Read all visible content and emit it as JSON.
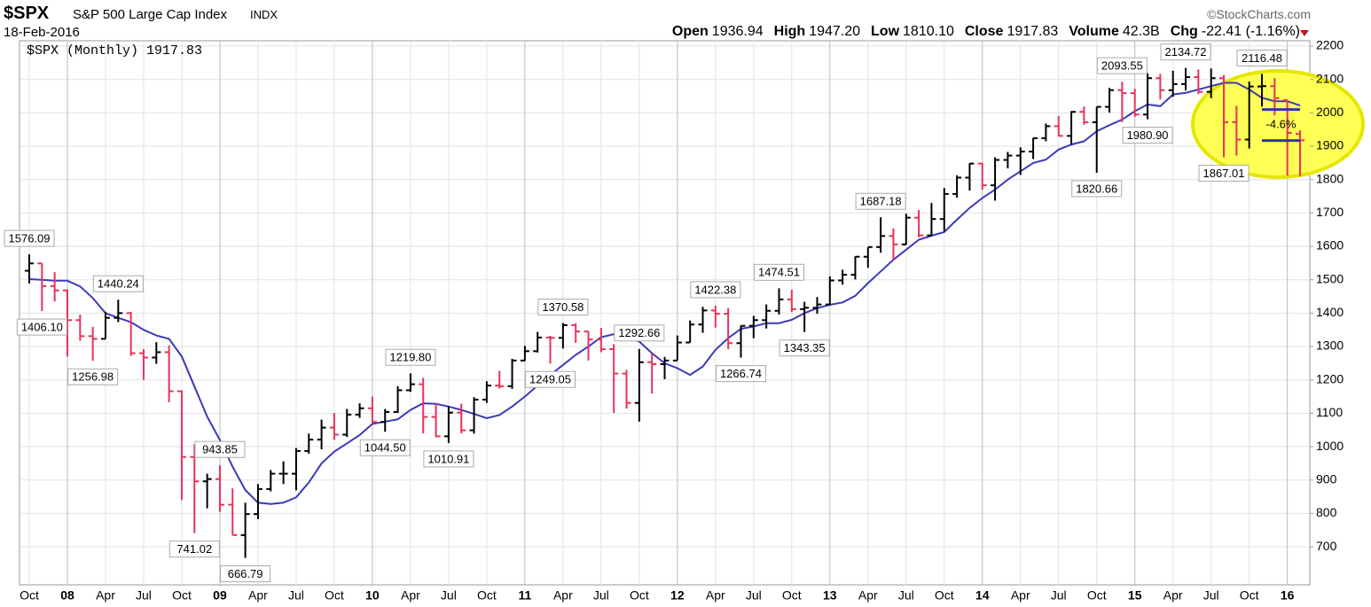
{
  "header": {
    "symbol": "$SPX",
    "name": "S&P 500 Large Cap Index",
    "exchange": "INDX",
    "date": "18-Feb-2016",
    "source": "©StockCharts.com",
    "quote": [
      {
        "label": "Open",
        "value": "1936.94"
      },
      {
        "label": "High",
        "value": "1947.20"
      },
      {
        "label": "Low",
        "value": "1810.10"
      },
      {
        "label": "Close",
        "value": "1917.83"
      },
      {
        "label": "Volume",
        "value": "42.3B"
      },
      {
        "label": "Chg",
        "value": "-22.41 (-1.16%)"
      }
    ]
  },
  "chart_data": {
    "type": "ohlc",
    "categories": [
      "Oct",
      null,
      null,
      "08",
      null,
      null,
      "Apr",
      null,
      null,
      "Jul",
      null,
      null,
      "Oct",
      null,
      null,
      "09",
      null,
      null,
      "Apr",
      null,
      null,
      "Jul",
      null,
      null,
      "Oct",
      null,
      null,
      "10",
      null,
      null,
      "Apr",
      null,
      null,
      "Jul",
      null,
      null,
      "Oct",
      null,
      null,
      "11",
      null,
      null,
      "Apr",
      null,
      null,
      "Jul",
      null,
      null,
      "Oct",
      null,
      null,
      "12",
      null,
      null,
      "Apr",
      null,
      null,
      "Jul",
      null,
      null,
      "Oct",
      null,
      null,
      "13",
      null,
      null,
      "Apr",
      null,
      null,
      "Jul",
      null,
      null,
      "Oct",
      null,
      null,
      "14",
      null,
      null,
      "Apr",
      null,
      null,
      "Jul",
      null,
      null,
      "Oct",
      null,
      null,
      "15",
      null,
      null,
      "Apr",
      null,
      null,
      "Jul",
      null,
      null,
      "Oct",
      null,
      null,
      "16",
      null
    ],
    "series": [
      {
        "name": "$SPX (Monthly) 1917.83",
        "up_color": "#000000",
        "down_color": "#e8325a",
        "open": [
          1527,
          1549,
          1481,
          1468,
          1379,
          1331,
          1323,
          1386,
          1400,
          1280,
          1267,
          1283,
          1166,
          969,
          896,
          903,
          826,
          735,
          798,
          873,
          919,
          919,
          987,
          1021,
          1057,
          1036,
          1096,
          1115,
          1074,
          1104,
          1169,
          1187,
          1089,
          1031,
          1102,
          1049,
          1141,
          1183,
          1181,
          1258,
          1286,
          1327,
          1326,
          1364,
          1345,
          1321,
          1292,
          1219,
          1131,
          1253,
          1247,
          1258,
          1312,
          1366,
          1408,
          1398,
          1310,
          1362,
          1379,
          1407,
          1441,
          1412,
          1416,
          1426,
          1498,
          1515,
          1569,
          1598,
          1631,
          1606,
          1686,
          1633,
          1682,
          1757,
          1806,
          1848,
          1783,
          1859,
          1872,
          1884,
          1924,
          1960,
          1931,
          2003,
          1972,
          2018,
          2068,
          2059,
          1995,
          2104,
          2068,
          2086,
          2107,
          2063,
          2104,
          1972,
          1920,
          2079,
          2080,
          2038,
          1936.94
        ],
        "high": [
          1576.09,
          1549,
          1523,
          1471,
          1396,
          1359,
          1404,
          1440.24,
          1404,
          1292,
          1313,
          1303,
          1168,
          1007,
          919,
          943.85,
          875,
          832,
          888,
          930,
          956,
          996,
          1039,
          1081,
          1101,
          1113,
          1130,
          1150,
          1113,
          1181,
          1219.8,
          1206,
          1131,
          1120,
          1129,
          1148,
          1196,
          1227,
          1263,
          1302,
          1344,
          1332,
          1370.58,
          1370,
          1346,
          1356,
          1307,
          1230,
          1292.66,
          1278,
          1269,
          1333,
          1378,
          1419,
          1422.38,
          1415,
          1363,
          1392,
          1426,
          1474.51,
          1470,
          1434,
          1448,
          1510,
          1530,
          1570,
          1597,
          1687.18,
          1654,
          1698,
          1709,
          1730,
          1775,
          1813,
          1849,
          1850,
          1867,
          1883,
          1897,
          1925,
          1968,
          1991,
          2005,
          2019,
          2018,
          2075,
          2093.55,
          2072,
          2119,
          2117,
          2126,
          2134.72,
          2130,
          2133,
          2113,
          2021,
          2094,
          2116.48,
          2104,
          2038,
          1947.2
        ],
        "low": [
          1489,
          1406.1,
          1435,
          1270,
          1317,
          1256.98,
          1323,
          1373,
          1272,
          1200,
          1248,
          1133,
          840,
          741.02,
          815,
          805,
          735,
          666.79,
          783,
          866,
          888,
          869,
          979,
          992,
          1020,
          1029,
          1086,
          1071,
          1044.5,
          1101,
          1164,
          1040,
          1028,
          1010.91,
          1040,
          1039,
          1131,
          1174,
          1173,
          1257,
          1282,
          1249.05,
          1294,
          1311,
          1258,
          1283,
          1101,
          1114,
          1075,
          1159,
          1202,
          1259,
          1312,
          1341,
          1357,
          1292,
          1266.74,
          1325,
          1354,
          1396,
          1403,
          1343.35,
          1398,
          1426,
          1485,
          1501,
          1536,
          1581,
          1560,
          1605,
          1627,
          1633,
          1646,
          1746,
          1767,
          1770,
          1737,
          1834,
          1814,
          1862,
          1915,
          1930,
          1905,
          1964,
          1820.66,
          2001,
          1972,
          1988,
          1980.9,
          2040,
          2048,
          2067,
          2056,
          2044,
          1867.01,
          1872,
          1893,
          2019,
          1993,
          1812,
          1810.1
        ],
        "close": [
          1549,
          1481,
          1468,
          1379,
          1331,
          1323,
          1386,
          1400,
          1280,
          1267,
          1283,
          1166,
          969,
          896,
          903,
          826,
          735,
          798,
          873,
          919,
          919,
          987,
          1021,
          1057,
          1036,
          1096,
          1115,
          1074,
          1104,
          1169,
          1187,
          1089,
          1031,
          1102,
          1049,
          1141,
          1183,
          1181,
          1258,
          1286,
          1327,
          1326,
          1364,
          1345,
          1321,
          1292,
          1219,
          1131,
          1253,
          1247,
          1258,
          1312,
          1366,
          1408,
          1398,
          1310,
          1362,
          1379,
          1407,
          1441,
          1412,
          1416,
          1426,
          1498,
          1515,
          1569,
          1598,
          1631,
          1606,
          1686,
          1633,
          1682,
          1757,
          1806,
          1848,
          1783,
          1859,
          1872,
          1884,
          1924,
          1960,
          1931,
          2003,
          1972,
          2018,
          2068,
          2059,
          1995,
          2104,
          2068,
          2086,
          2107,
          2063,
          2104,
          1972,
          1920,
          2079,
          2080,
          2044,
          1940,
          1917.83
        ],
        "high_labels": [
          "1576.09",
          null,
          null,
          null,
          null,
          null,
          null,
          "1440.24",
          null,
          null,
          null,
          null,
          null,
          null,
          null,
          "943.85",
          null,
          null,
          null,
          null,
          null,
          null,
          null,
          null,
          null,
          null,
          null,
          null,
          null,
          null,
          "1219.80",
          null,
          null,
          null,
          null,
          null,
          null,
          null,
          null,
          null,
          null,
          null,
          "1370.58",
          null,
          null,
          null,
          null,
          null,
          "1292.66",
          null,
          null,
          null,
          null,
          null,
          "1422.38",
          null,
          null,
          null,
          null,
          "1474.51",
          null,
          null,
          null,
          null,
          null,
          null,
          null,
          "1687.18",
          null,
          null,
          null,
          null,
          null,
          null,
          null,
          null,
          null,
          null,
          null,
          null,
          null,
          null,
          null,
          null,
          null,
          null,
          "2093.55",
          null,
          null,
          null,
          null,
          "2134.72",
          null,
          null,
          null,
          null,
          null,
          "2116.48",
          null,
          null,
          null
        ],
        "low_labels": [
          null,
          "1406.10",
          null,
          null,
          null,
          "1256.98",
          null,
          null,
          null,
          null,
          null,
          null,
          null,
          "741.02",
          null,
          null,
          null,
          "666.79",
          null,
          null,
          null,
          null,
          null,
          null,
          null,
          null,
          null,
          null,
          "1044.50",
          null,
          null,
          null,
          null,
          "1010.91",
          null,
          null,
          null,
          null,
          null,
          null,
          null,
          "1249.05",
          null,
          null,
          null,
          null,
          null,
          null,
          null,
          null,
          null,
          null,
          null,
          null,
          null,
          null,
          "1266.74",
          null,
          null,
          null,
          null,
          "1343.35",
          null,
          null,
          null,
          null,
          null,
          null,
          null,
          null,
          null,
          null,
          null,
          null,
          null,
          null,
          null,
          null,
          null,
          null,
          null,
          null,
          null,
          null,
          "1820.66",
          null,
          null,
          null,
          "1980.90",
          null,
          null,
          null,
          null,
          null,
          "1867.01",
          null,
          null,
          null,
          null,
          null,
          null
        ]
      },
      {
        "type": "line",
        "color": "#3a3ab8",
        "values": [
          1502,
          1500,
          1497,
          1497,
          1480,
          1445,
          1400,
          1386,
          1373,
          1350,
          1333,
          1323,
          1270,
          1180,
          1090,
          1020,
          940,
          870,
          832,
          828,
          832,
          848,
          893,
          950,
          985,
          1010,
          1035,
          1068,
          1075,
          1082,
          1110,
          1130,
          1128,
          1120,
          1110,
          1098,
          1085,
          1095,
          1120,
          1150,
          1183,
          1215,
          1245,
          1275,
          1300,
          1328,
          1337,
          1330,
          1315,
          1280,
          1250,
          1235,
          1215,
          1240,
          1290,
          1325,
          1353,
          1360,
          1370,
          1370,
          1380,
          1400,
          1415,
          1425,
          1432,
          1452,
          1490,
          1525,
          1560,
          1590,
          1620,
          1632,
          1643,
          1680,
          1715,
          1745,
          1770,
          1800,
          1825,
          1850,
          1860,
          1890,
          1905,
          1915,
          1945,
          1963,
          1980,
          2005,
          2025,
          2020,
          2055,
          2060,
          2070,
          2080,
          2090,
          2090,
          2070,
          2045,
          2035,
          2035,
          2022
        ]
      }
    ],
    "annotation": {
      "text": "-4.6%",
      "levels": [
        2010,
        1917
      ],
      "color": "#3333aa"
    },
    "ylim": [
      586,
      2216
    ],
    "yticks": [
      700,
      800,
      900,
      1000,
      1100,
      1200,
      1300,
      1400,
      1500,
      1600,
      1700,
      1800,
      1900,
      2000,
      2100,
      2200
    ],
    "grid": true
  }
}
